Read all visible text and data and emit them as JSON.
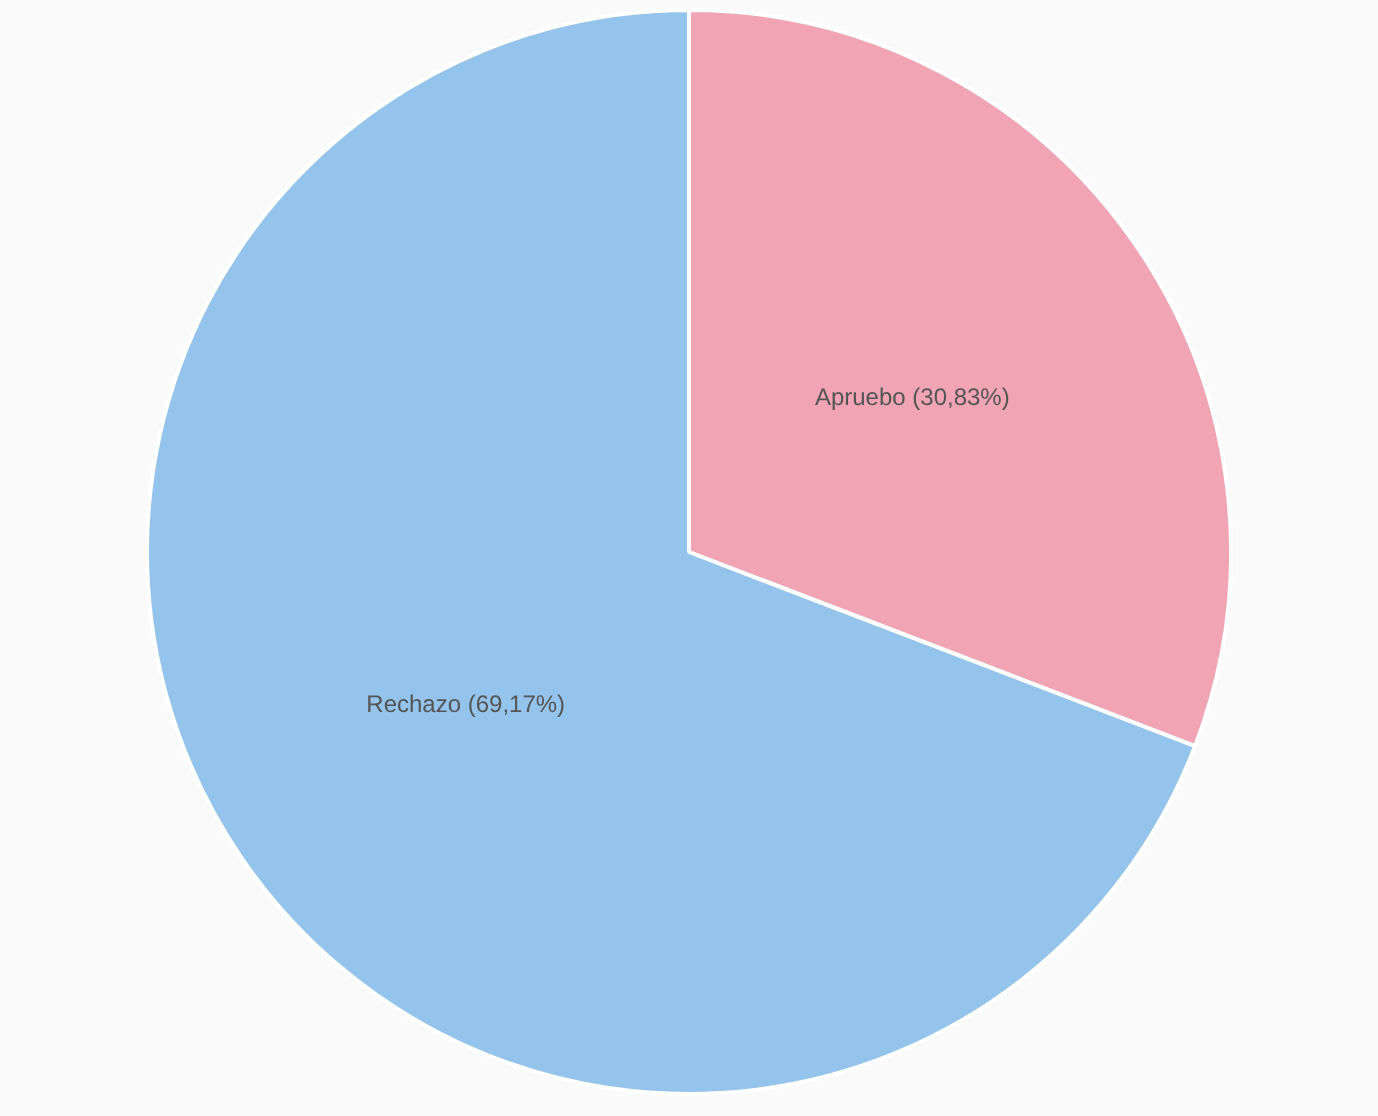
{
  "chart_data": {
    "type": "pie",
    "categories": [
      "Apruebo",
      "Rechazo"
    ],
    "values": [
      30.83,
      69.17
    ],
    "colors": [
      "#f1a5b4",
      "#94c4ec"
    ],
    "value_labels": [
      "(30,83%)",
      "(69,17%)"
    ],
    "legend": false
  }
}
